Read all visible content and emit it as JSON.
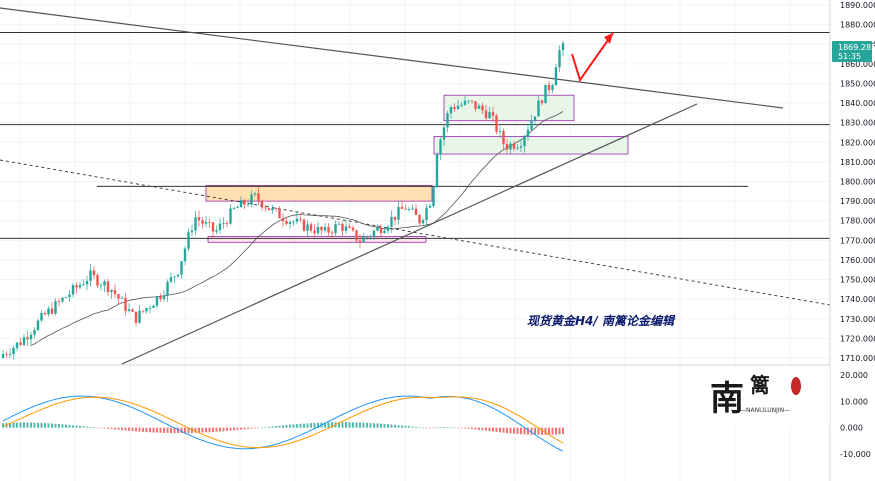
{
  "caption": "现货黄金H4/ 南篱论金编辑",
  "watermark": {
    "glyphs": "南篱",
    "subtext": "—NANLILUNJIN—"
  },
  "price_tag": {
    "price": "1869.285",
    "countdown": "51:35"
  },
  "colors": {
    "up": "#26a69a",
    "down": "#ef5350",
    "macd_line": "#2196f3",
    "signal_line": "#ff9800",
    "zone_purple": "#9c27b0",
    "zone_orange": "#ffe0b2",
    "zone_green": "#e8f5e9",
    "arrow": "#ff1a1a",
    "price_tag_bg": "#26a69a"
  },
  "chart_data": [
    {
      "type": "candlestick",
      "title": "",
      "price_axis": {
        "ticks": [
          "1890.000",
          "1880.000",
          "1870.000",
          "1860.000",
          "1850.000",
          "1840.000",
          "1830.000",
          "1820.000",
          "1810.000",
          "1800.000",
          "1790.000",
          "1780.000",
          "1770.000",
          "1760.000",
          "1750.000",
          "1740.000",
          "1730.000",
          "1720.000",
          "1710.000"
        ],
        "ylim": [
          1707,
          1892
        ]
      },
      "horizontal_levels": [
        1876,
        1829,
        1797.5,
        1771
      ],
      "annotations": [
        "purple boxed zones near 1820 and 1840",
        "orange zone 1790-1798",
        "thin box 1769-1772",
        "falling dashed trendline",
        "rising support trendline",
        "red arrow projecting higher"
      ],
      "last_price": 1869.285
    },
    {
      "type": "line",
      "title": "",
      "indicator": "MACD",
      "axis_ticks": [
        "20.000",
        "10.000",
        "0.000",
        "-10.000"
      ],
      "ylim": [
        -13,
        22
      ]
    }
  ]
}
